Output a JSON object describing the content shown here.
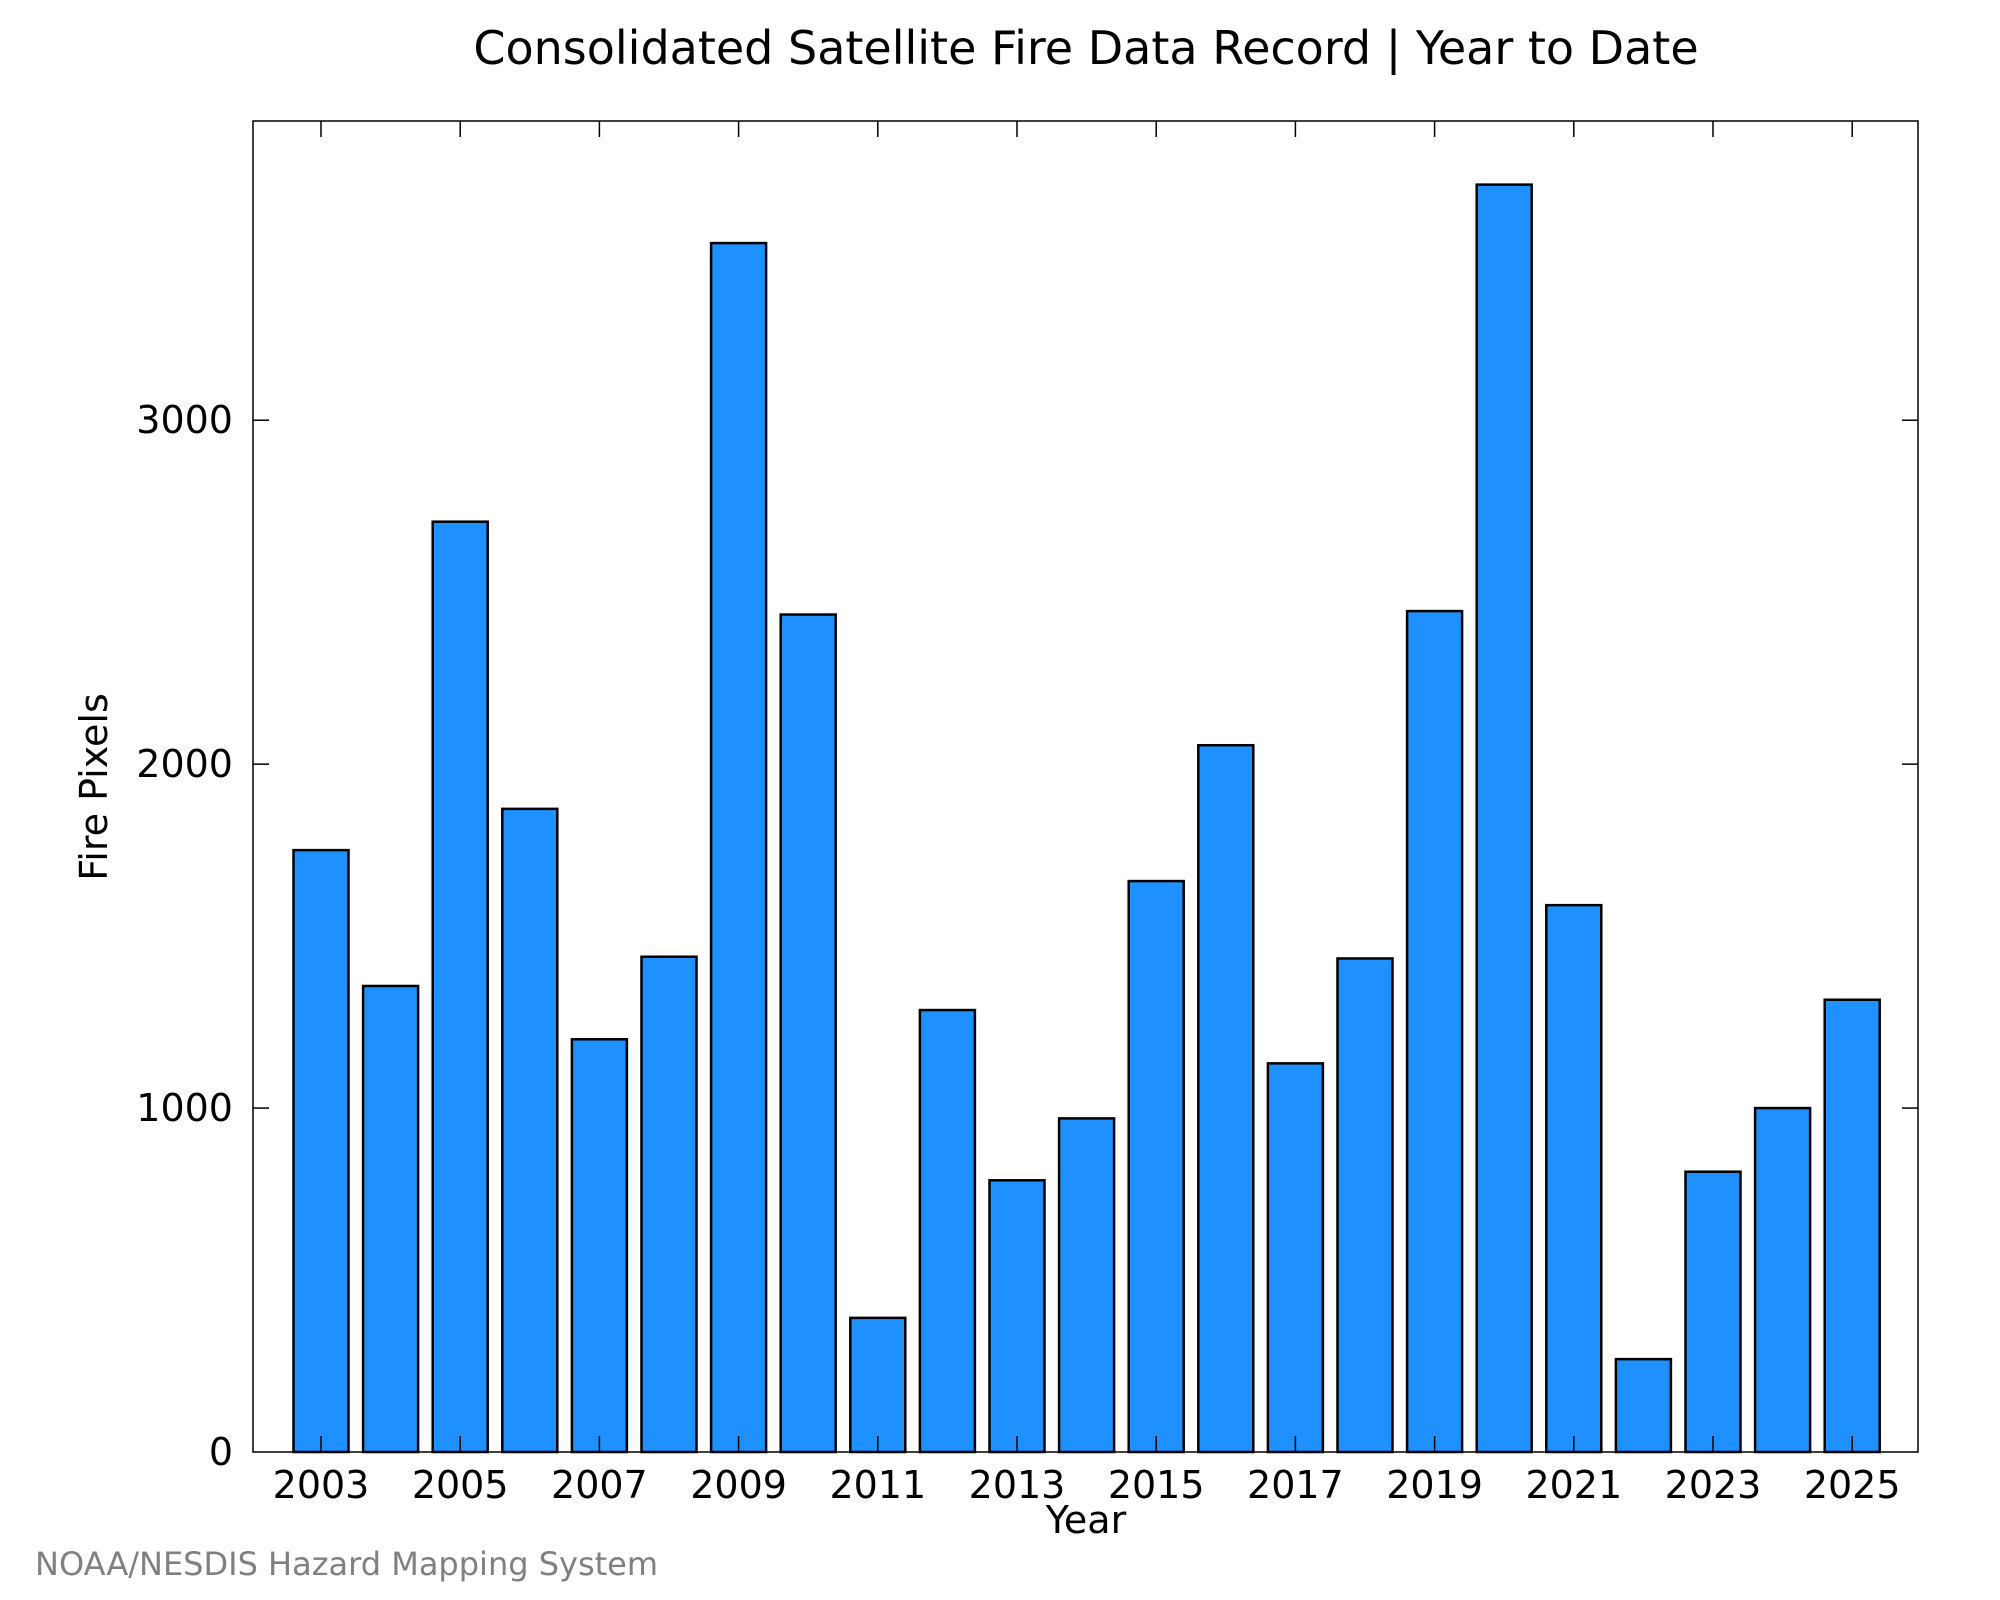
{
  "chart_data": {
    "type": "bar",
    "title": "Consolidated Satellite Fire Data Record | Year to Date",
    "xlabel": "Year",
    "ylabel": "Fire Pixels",
    "categories": [
      "2003",
      "2004",
      "2005",
      "2006",
      "2007",
      "2008",
      "2009",
      "2010",
      "2011",
      "2012",
      "2013",
      "2014",
      "2015",
      "2016",
      "2017",
      "2018",
      "2019",
      "2020",
      "2021",
      "2022",
      "2023",
      "2024",
      "2025"
    ],
    "x_tick_labels": [
      "2003",
      "2005",
      "2007",
      "2009",
      "2011",
      "2013",
      "2015",
      "2017",
      "2019",
      "2021",
      "2023",
      "2025"
    ],
    "y_ticks": [
      0,
      1000,
      2000,
      3000
    ],
    "values": [
      1750,
      1355,
      2705,
      1870,
      1200,
      1440,
      3515,
      2435,
      390,
      1285,
      790,
      970,
      1660,
      2055,
      1130,
      1435,
      2445,
      3685,
      1590,
      270,
      815,
      1000,
      1315
    ],
    "ylim": [
      0,
      3870
    ],
    "grid": false,
    "bar_color": "#1e90ff",
    "edge_color": "#000000"
  },
  "footer": {
    "source": "NOAA/NESDIS Hazard Mapping System"
  }
}
